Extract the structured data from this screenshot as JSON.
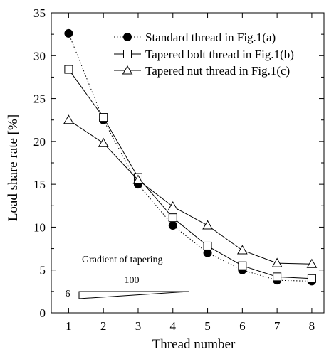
{
  "chart_data": {
    "type": "line",
    "title": "",
    "xlabel": "Thread number",
    "ylabel": "Load share rate [%]",
    "x": [
      1,
      2,
      3,
      4,
      5,
      6,
      7,
      8
    ],
    "xlim": [
      0.5,
      8.35
    ],
    "ylim": [
      0,
      35
    ],
    "x_ticks": [
      "1",
      "2",
      "3",
      "4",
      "5",
      "6",
      "7",
      "8"
    ],
    "y_ticks": [
      "0",
      "5",
      "10",
      "15",
      "20",
      "25",
      "30",
      "35"
    ],
    "y_tick_values": [
      0,
      5,
      10,
      15,
      20,
      25,
      30,
      35
    ],
    "legend_position": "top-right",
    "grid": false,
    "series": [
      {
        "name": "Standard thread in Fig.1(a)",
        "marker": "filled-circle",
        "line": "dotted",
        "values": [
          32.6,
          22.5,
          15.0,
          10.2,
          7.0,
          5.0,
          3.8,
          3.7
        ]
      },
      {
        "name": "Tapered bolt thread in Fig.1(b)",
        "marker": "open-square",
        "line": "solid",
        "values": [
          28.4,
          22.8,
          15.8,
          11.1,
          7.8,
          5.5,
          4.2,
          4.0
        ]
      },
      {
        "name": "Tapered nut thread in Fig.1(c)",
        "marker": "open-triangle",
        "line": "solid",
        "values": [
          22.5,
          19.8,
          15.5,
          12.4,
          10.2,
          7.3,
          5.8,
          5.7
        ]
      }
    ],
    "annotations": {
      "gradient_label": "Gradient of tapering",
      "run_label": "100",
      "rise_label": "6"
    }
  }
}
